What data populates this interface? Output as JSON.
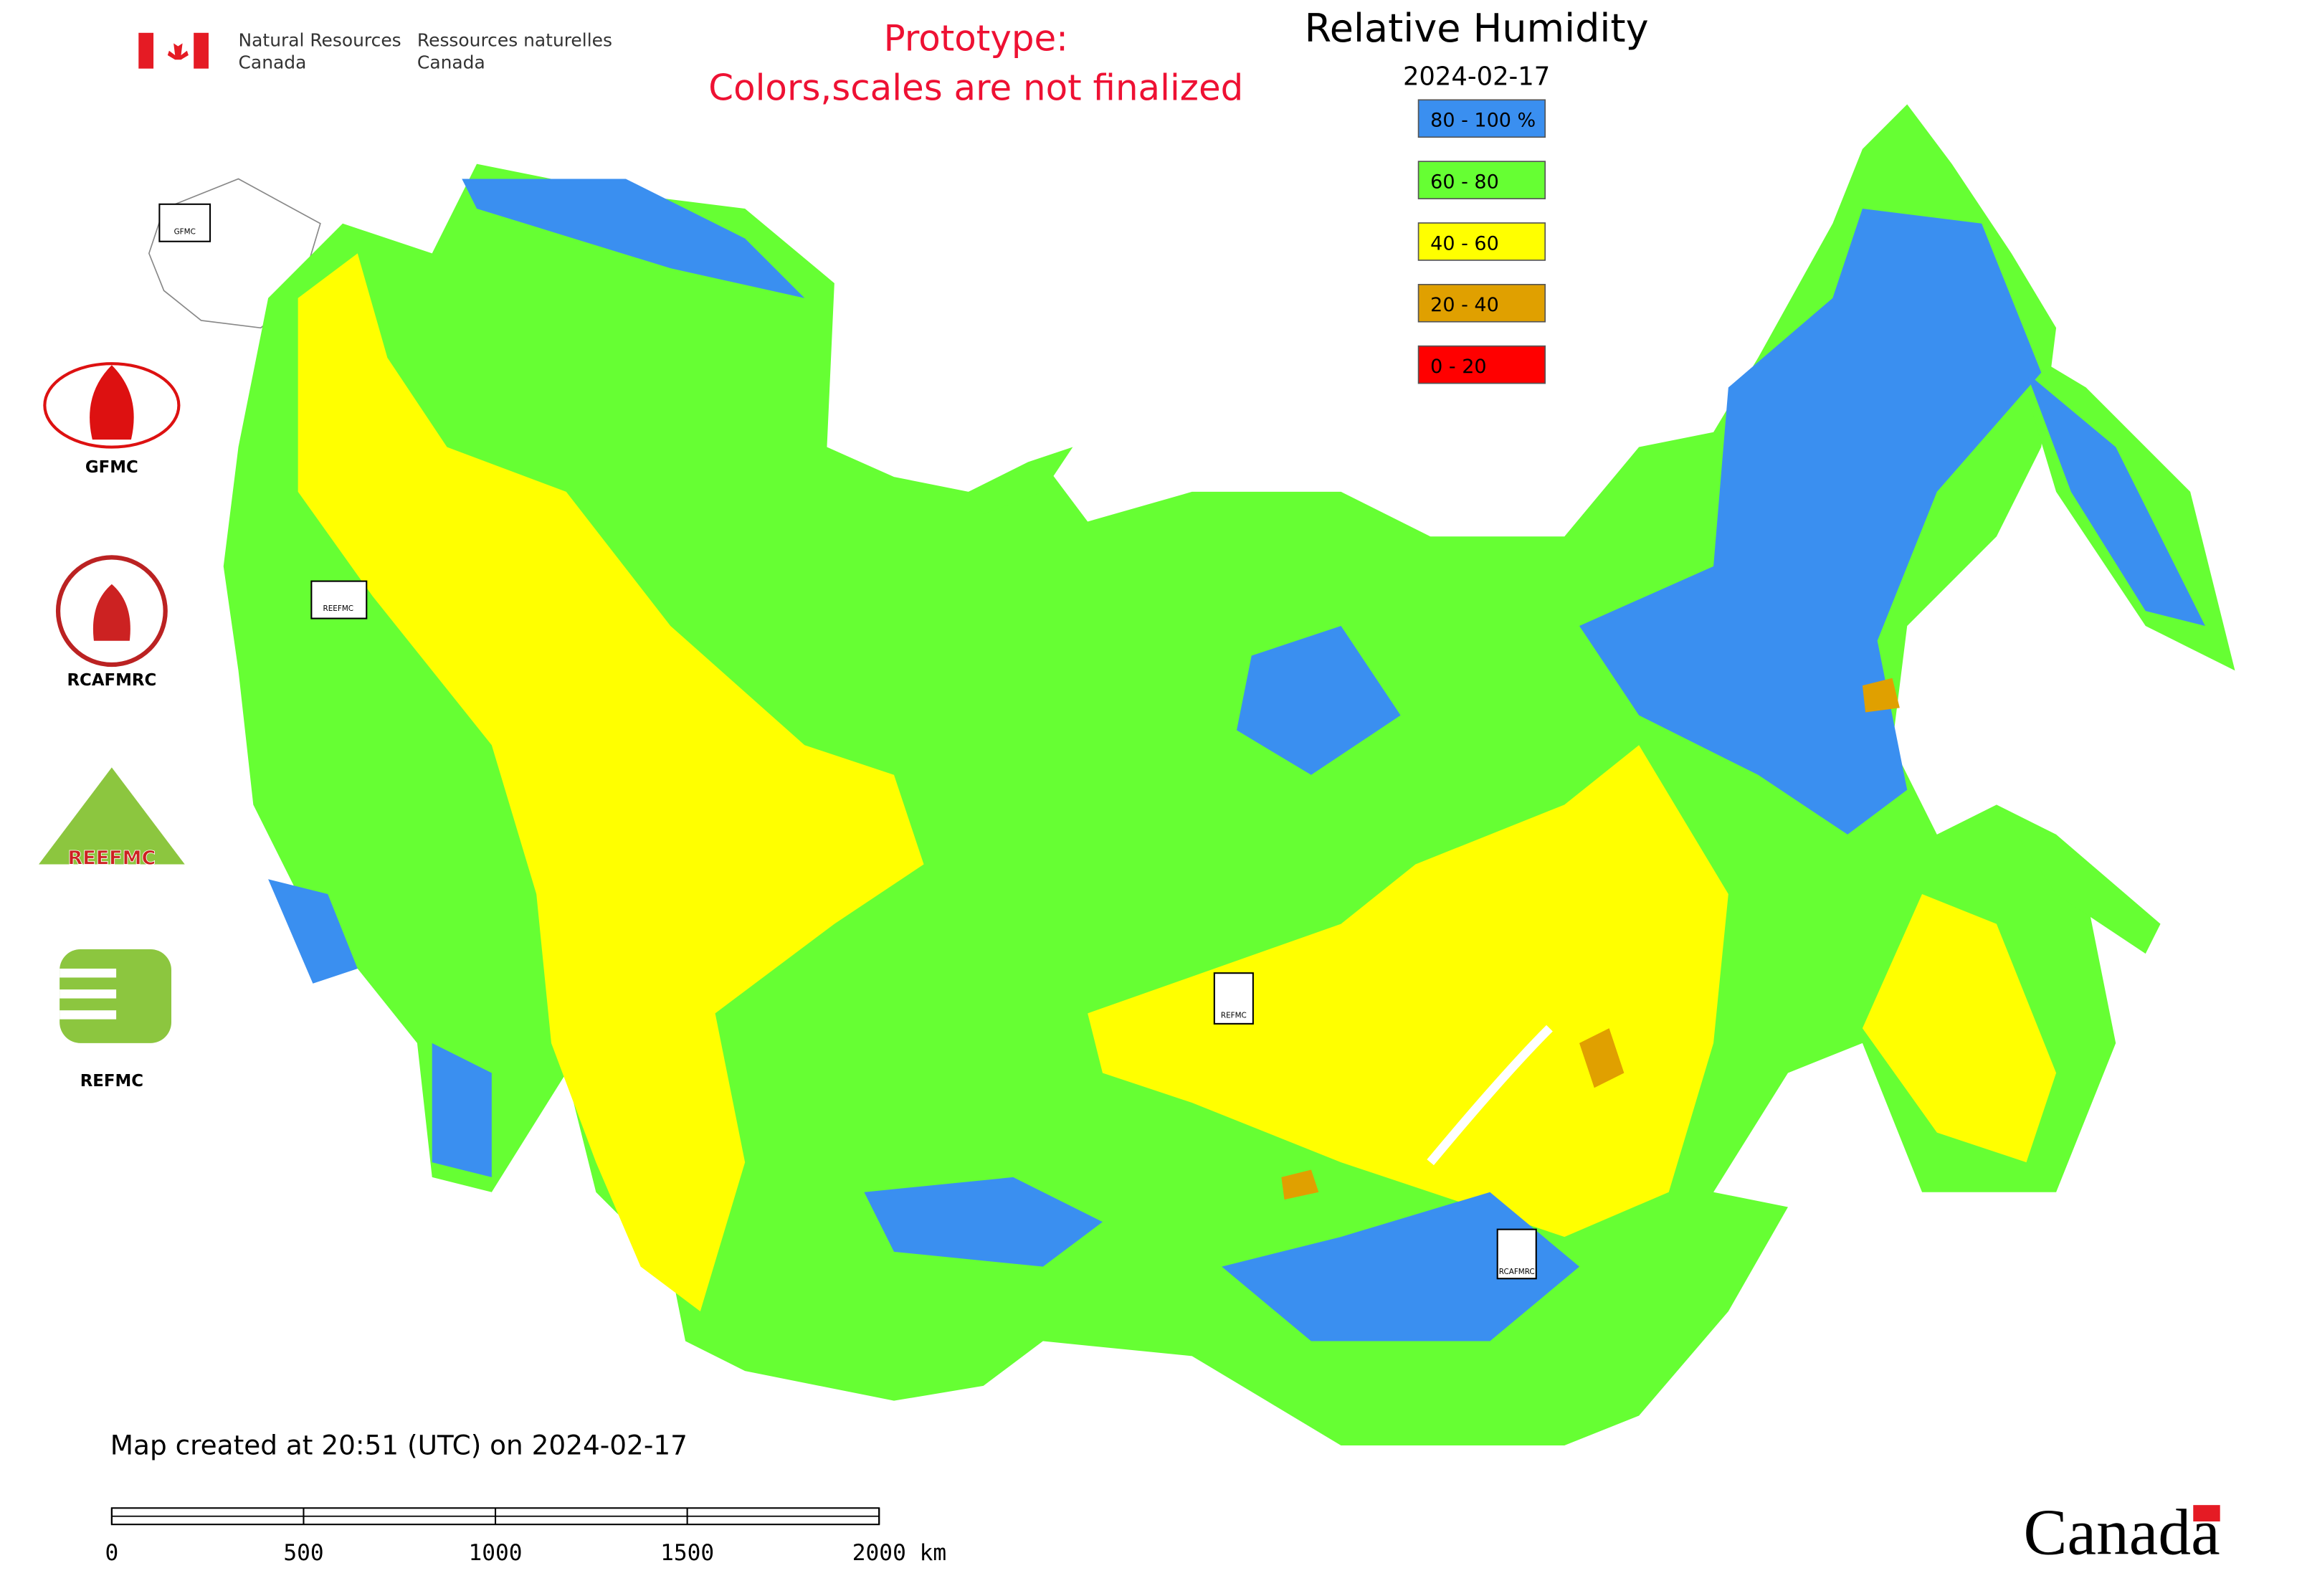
{
  "header": {
    "agency_en": [
      "Natural Resources",
      "Canada"
    ],
    "agency_fr": [
      "Ressources naturelles",
      "Canada"
    ],
    "notice": [
      "Prototype:",
      "Colors,scales are not finalized"
    ],
    "title": "Relative Humidity",
    "date": "2024-02-17"
  },
  "legend": [
    {
      "label": "80 - 100 %",
      "color": "#3a8ff0"
    },
    {
      "label": "60 - 80",
      "color": "#66ff33"
    },
    {
      "label": "40 - 60",
      "color": "#ffff00"
    },
    {
      "label": "20 - 40",
      "color": "#e0a000"
    },
    {
      "label": "0 - 20",
      "color": "#ff0000"
    }
  ],
  "side_logos": {
    "captions": [
      "GFMC",
      "RCAFMRC",
      "REFMC"
    ],
    "emblem_text": "REEFMC"
  },
  "map_markers": [
    "GFMC",
    "REEFMC",
    "REFMC",
    "RCAFMRC"
  ],
  "footer": {
    "created": "Map created at 20:51 (UTC) on 2024-02-17",
    "scale_labels": [
      "0",
      "500",
      "1000",
      "1500",
      "2000 km"
    ],
    "wordmark": "Canada"
  }
}
